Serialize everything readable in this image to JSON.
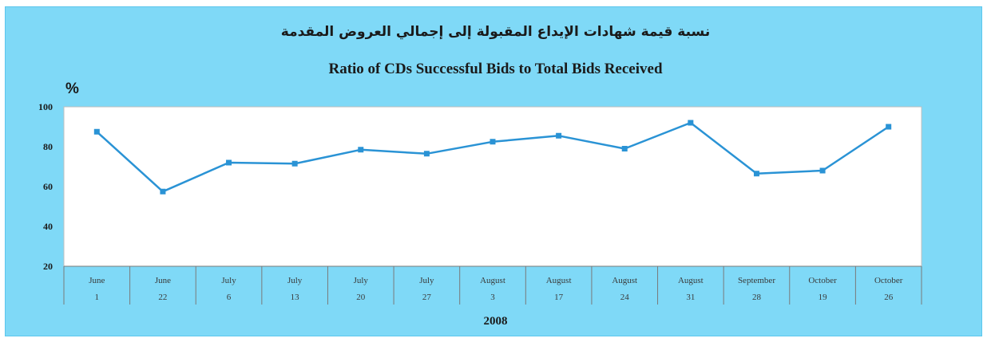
{
  "title_ar": "نسبة قيمة شهادات الإيداع المقبولة إلى إجمالي العروض المقدمة",
  "title_en": "Ratio of CDs Successful Bids to Total Bids Received",
  "unit_label": "%",
  "year_label": "2008",
  "colors": {
    "background": "#7fd9f7",
    "plot_area": "#ffffff",
    "line": "#2a93d5",
    "marker": "#2a93d5",
    "axis": "#7a7a7a"
  },
  "chart_data": {
    "type": "line",
    "title": "Ratio of CDs Successful Bids to Total Bids Received",
    "ylabel": "%",
    "xlabel": "2008",
    "ylim": [
      20,
      100
    ],
    "yticks": [
      20,
      40,
      60,
      80,
      100
    ],
    "grid": false,
    "categories": [
      {
        "month": "June",
        "day": "1"
      },
      {
        "month": "June",
        "day": "22"
      },
      {
        "month": "July",
        "day": "6"
      },
      {
        "month": "July",
        "day": "13"
      },
      {
        "month": "July",
        "day": "20"
      },
      {
        "month": "July",
        "day": "27"
      },
      {
        "month": "August",
        "day": "3"
      },
      {
        "month": "August",
        "day": "17"
      },
      {
        "month": "August",
        "day": "24"
      },
      {
        "month": "August",
        "day": "31"
      },
      {
        "month": "September",
        "day": "28"
      },
      {
        "month": "October",
        "day": "19"
      },
      {
        "month": "October",
        "day": "26"
      }
    ],
    "series": [
      {
        "values": [
          87.5,
          57.5,
          72,
          71.5,
          78.5,
          76.5,
          82.5,
          85.5,
          79,
          92,
          66.5,
          68,
          90
        ]
      }
    ]
  }
}
